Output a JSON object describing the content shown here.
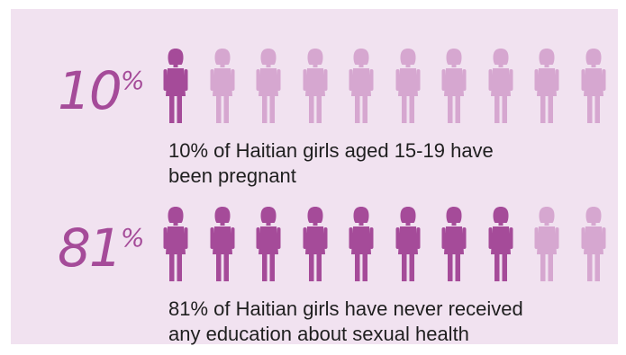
{
  "chart_data": [
    {
      "type": "pictogram",
      "value_percent": 10,
      "icons_total": 10,
      "icons_filled": 1,
      "big_number": "10",
      "big_symbol": "%",
      "caption_line1": "10% of Haitian girls aged 15-19 have",
      "caption_line2": "been pregnant"
    },
    {
      "type": "pictogram",
      "value_percent": 81,
      "icons_total": 10,
      "icons_filled": 8,
      "big_number": "81",
      "big_symbol": "%",
      "caption_line1": "81% of Haitian girls have never received",
      "caption_line2": "any education about sexual health"
    }
  ],
  "colors": {
    "background": "#f1e2f0",
    "filled_icon": "#a54b99",
    "empty_icon": "#d6a7d0",
    "accent_text": "#a54b99",
    "body_text": "#1f1f1f"
  },
  "icon": "girl-figure-icon"
}
